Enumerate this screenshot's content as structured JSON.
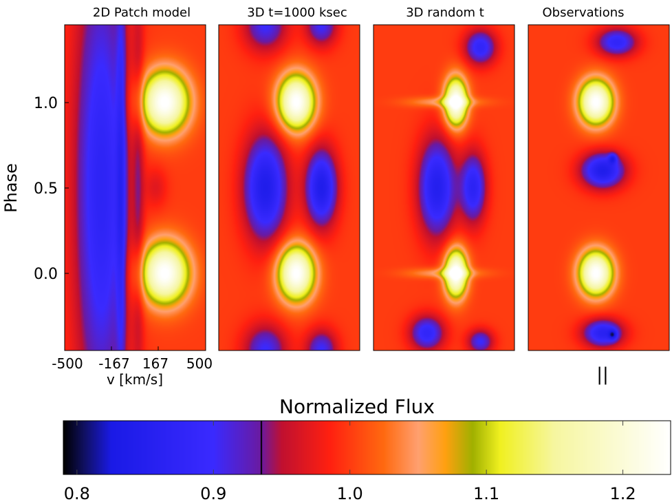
{
  "chart_data": {
    "type": "heatmap",
    "ylabel": "Phase",
    "xlabel": "v [km/s]",
    "xlim": [
      -500,
      500
    ],
    "ylim": [
      -0.45,
      1.45
    ],
    "yticks": [
      0.0,
      0.5,
      1.0
    ],
    "ytick_labels": [
      "0.0",
      "0.5",
      "1.0"
    ],
    "xticks": [
      -500,
      -167,
      167,
      500
    ],
    "xtick_labels": [
      "-500",
      "-167",
      "167",
      "500"
    ],
    "panels": [
      {
        "title": "2D Patch model",
        "blobs": [
          {
            "v": -240,
            "phase": 0.5,
            "rv": 190,
            "rp": 1.4,
            "amp": -0.13
          },
          {
            "v": -100,
            "phase": 0.5,
            "rv": 35,
            "rp": 1.4,
            "amp": -0.07
          },
          {
            "v": 25,
            "phase": 0.5,
            "rv": 40,
            "rp": 1.4,
            "amp": -0.04
          },
          {
            "v": 210,
            "phase": 1.0,
            "rv": 170,
            "rp": 0.18,
            "amp": 0.24
          },
          {
            "v": 210,
            "phase": 0.0,
            "rv": 170,
            "rp": 0.18,
            "amp": 0.24
          },
          {
            "v": 150,
            "phase": 0.5,
            "rv": 80,
            "rp": 0.12,
            "amp": -0.03
          }
        ]
      },
      {
        "title": "3D t=1000 ksec",
        "blobs": [
          {
            "v": -170,
            "phase": 0.5,
            "rv": 150,
            "rp": 0.3,
            "amp": -0.16
          },
          {
            "v": -170,
            "phase": 1.45,
            "rv": 150,
            "rp": 0.15,
            "amp": -0.1
          },
          {
            "v": -170,
            "phase": -0.45,
            "rv": 150,
            "rp": 0.15,
            "amp": -0.1
          },
          {
            "v": 230,
            "phase": 0.5,
            "rv": 110,
            "rp": 0.22,
            "amp": -0.16
          },
          {
            "v": 230,
            "phase": 1.45,
            "rv": 110,
            "rp": 0.12,
            "amp": -0.1
          },
          {
            "v": 230,
            "phase": -0.45,
            "rv": 110,
            "rp": 0.12,
            "amp": -0.1
          },
          {
            "v": 50,
            "phase": 1.0,
            "rv": 130,
            "rp": 0.16,
            "amp": 0.24
          },
          {
            "v": 50,
            "phase": 0.0,
            "rv": 130,
            "rp": 0.16,
            "amp": 0.24
          }
        ]
      },
      {
        "title": "3D random t",
        "blobs": [
          {
            "v": -50,
            "phase": 0.5,
            "rv": 130,
            "rp": 0.28,
            "amp": -0.15
          },
          {
            "v": -120,
            "phase": -0.35,
            "rv": 120,
            "rp": 0.1,
            "amp": -0.12
          },
          {
            "v": 210,
            "phase": 0.5,
            "rv": 90,
            "rp": 0.2,
            "amp": -0.13
          },
          {
            "v": 260,
            "phase": 1.32,
            "rv": 110,
            "rp": 0.1,
            "amp": -0.12
          },
          {
            "v": 260,
            "phase": -0.4,
            "rv": 90,
            "rp": 0.07,
            "amp": -0.1
          },
          {
            "v": 85,
            "phase": 1.0,
            "rv": 80,
            "rp": 0.14,
            "amp": 0.24
          },
          {
            "v": 85,
            "phase": 0.0,
            "rv": 80,
            "rp": 0.14,
            "amp": 0.24
          },
          {
            "v": 10,
            "phase": 1.0,
            "rv": 260,
            "rp": 0.03,
            "amp": 0.06
          },
          {
            "v": 10,
            "phase": 0.0,
            "rv": 260,
            "rp": 0.03,
            "amp": 0.06
          }
        ]
      },
      {
        "title": "Observations",
        "blobs": [
          {
            "v": 30,
            "phase": 0.6,
            "rv": 150,
            "rp": 0.1,
            "amp": -0.16
          },
          {
            "v": 100,
            "phase": 0.67,
            "rv": 30,
            "rp": 0.03,
            "amp": -0.09
          },
          {
            "v": 30,
            "phase": -0.35,
            "rv": 140,
            "rp": 0.08,
            "amp": -0.14
          },
          {
            "v": 100,
            "phase": -0.36,
            "rv": 30,
            "rp": 0.03,
            "amp": -0.09
          },
          {
            "v": 130,
            "phase": 1.35,
            "rv": 140,
            "rp": 0.08,
            "amp": -0.12
          },
          {
            "v": -20,
            "phase": 1.0,
            "rv": 120,
            "rp": 0.13,
            "amp": 0.24
          },
          {
            "v": -20,
            "phase": 0.0,
            "rv": 120,
            "rp": 0.13,
            "amp": 0.24
          }
        ]
      }
    ],
    "colorbar": {
      "title": "Normalized Flux",
      "range": [
        0.79,
        1.235
      ],
      "ticks": [
        0.8,
        0.9,
        1.0,
        1.1,
        1.2
      ],
      "tick_labels": [
        "0.8",
        "0.9",
        "1.0",
        "1.1",
        "1.2"
      ],
      "marker": 0.935,
      "stops": [
        {
          "v": 0.79,
          "color": "#000000"
        },
        {
          "v": 0.805,
          "color": "#101060"
        },
        {
          "v": 0.825,
          "color": "#1a1ae6"
        },
        {
          "v": 0.9,
          "color": "#3a2aff"
        },
        {
          "v": 0.935,
          "color": "#6b1aa0"
        },
        {
          "v": 0.95,
          "color": "#c01030"
        },
        {
          "v": 0.985,
          "color": "#ff2010"
        },
        {
          "v": 1.025,
          "color": "#ff6a10"
        },
        {
          "v": 1.05,
          "color": "#ffa070"
        },
        {
          "v": 1.07,
          "color": "#ffa010"
        },
        {
          "v": 1.09,
          "color": "#a0b000"
        },
        {
          "v": 1.11,
          "color": "#f0f020"
        },
        {
          "v": 1.15,
          "color": "#f6f6a0"
        },
        {
          "v": 1.235,
          "color": "#ffffff"
        }
      ]
    },
    "marker_label": "||"
  }
}
